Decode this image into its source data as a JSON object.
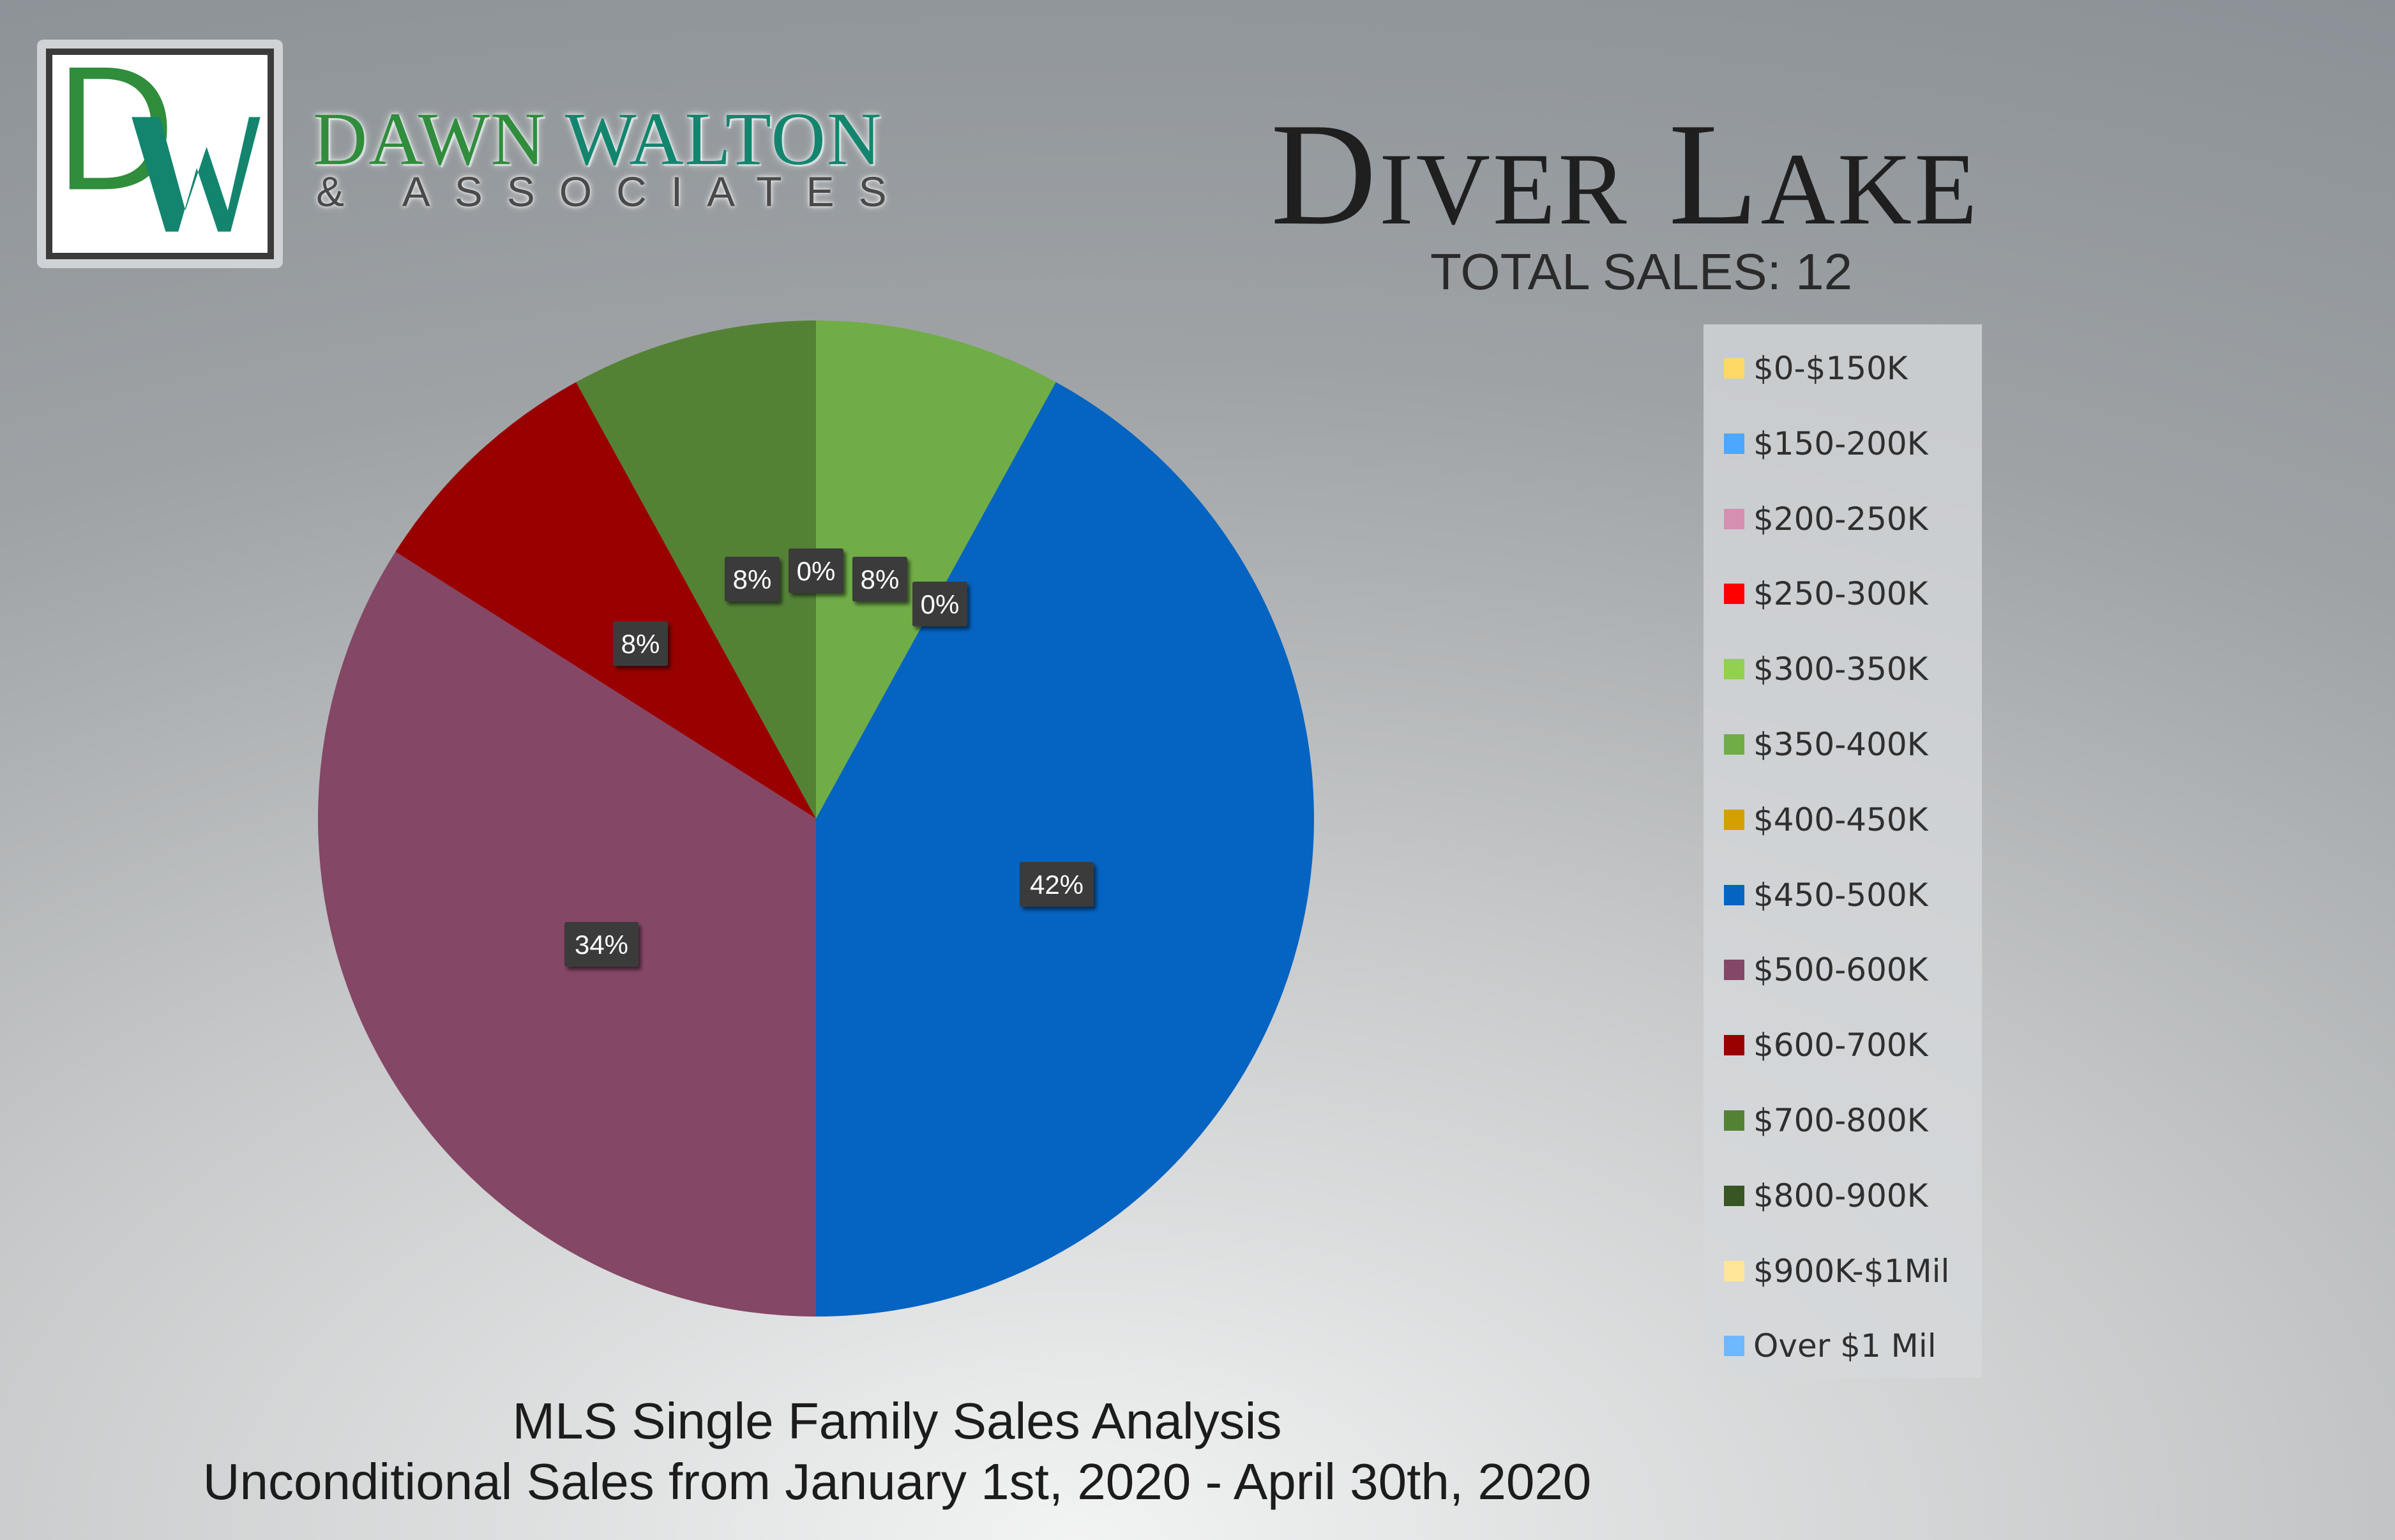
{
  "brand": {
    "logo_monogram": "DW",
    "name_part1": "DAWN",
    "name_part2": "WALTON",
    "sub": "& ASSOCIATES",
    "colors": {
      "green": "#2f8d3c",
      "teal": "#13856e"
    }
  },
  "header": {
    "title": "Diver Lake",
    "total_sales": "TOTAL SALES: 12"
  },
  "footer": {
    "line1": "MLS Single Family Sales Analysis",
    "line2": "Unconditional Sales from January 1st, 2020 - April 30th, 2020"
  },
  "chart_data": {
    "type": "pie",
    "legend_position": "right",
    "slices": [
      {
        "label": "$0-$150K",
        "value": 0,
        "color": "#ffd966",
        "data_label": ""
      },
      {
        "label": "$150-200K",
        "value": 0,
        "color": "#4da6ff",
        "data_label": ""
      },
      {
        "label": "$200-250K",
        "value": 0,
        "color": "#d58fb1",
        "data_label": ""
      },
      {
        "label": "$250-300K",
        "value": 0,
        "color": "#ff0000",
        "data_label": ""
      },
      {
        "label": "$300-350K",
        "value": 0,
        "color": "#92d050",
        "data_label": ""
      },
      {
        "label": "$350-400K",
        "value": 8,
        "color": "#70ad47",
        "data_label": "8%"
      },
      {
        "label": "$400-450K",
        "value": 0,
        "color": "#d4a000",
        "data_label": "0%"
      },
      {
        "label": "$450-500K",
        "value": 42,
        "color": "#0563c1",
        "data_label": "42%"
      },
      {
        "label": "$500-600K",
        "value": 34,
        "color": "#854766",
        "data_label": "34%"
      },
      {
        "label": "$600-700K",
        "value": 8,
        "color": "#990000",
        "data_label": "8%"
      },
      {
        "label": "$700-800K",
        "value": 8,
        "color": "#548235",
        "data_label": "8%"
      },
      {
        "label": "$800-900K",
        "value": 0,
        "color": "#375623",
        "data_label": "0%"
      },
      {
        "label": "$900K-$1Mil",
        "value": 0,
        "color": "#ffe699",
        "data_label": ""
      },
      {
        "label": "Over $1 Mil",
        "value": 0,
        "color": "#6fb7ff",
        "data_label": ""
      }
    ]
  }
}
